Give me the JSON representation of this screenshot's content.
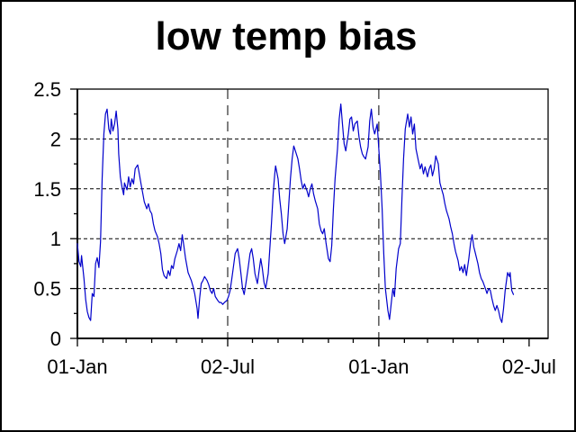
{
  "chart_data": {
    "type": "line",
    "title": "low temp bias",
    "legend": "none",
    "colors": {
      "line": "#0000cc",
      "axis": "#000000",
      "background": "#ffffff",
      "text": "#000000"
    },
    "grid": {
      "horizontal_style": "dashed",
      "vertical_style": "long-dashed"
    },
    "x_axis": {
      "kind": "date",
      "tick_labels": [
        "01-Jan",
        "02-Jul",
        "01-Jan",
        "02-Jul"
      ],
      "major_tick_days": [
        0,
        182,
        365,
        547
      ],
      "minor_tick_days": [
        31,
        59,
        90,
        120,
        151,
        212,
        243,
        273,
        304,
        334,
        396,
        424,
        455,
        485,
        516
      ],
      "range_days": [
        0,
        570
      ],
      "vertical_gridline_days": [
        182,
        365
      ]
    },
    "y_axis": {
      "range": [
        0,
        2.5
      ],
      "major_ticks": [
        0,
        0.5,
        1,
        1.5,
        2,
        2.5
      ],
      "tick_labels": [
        "0",
        "0.5",
        "1",
        "1.5",
        "2",
        "2.5"
      ],
      "minor_ticks": [
        0.25,
        0.75,
        1.25,
        1.75,
        2.25
      ],
      "gridlines": [
        0.5,
        1,
        1.5,
        2
      ]
    },
    "series": [
      {
        "name": "low temp bias",
        "points": [
          [
            0,
            0.95
          ],
          [
            2,
            0.77
          ],
          [
            4,
            0.72
          ],
          [
            5,
            0.83
          ],
          [
            8,
            0.6
          ],
          [
            10,
            0.39
          ],
          [
            12,
            0.27
          ],
          [
            14,
            0.21
          ],
          [
            16,
            0.18
          ],
          [
            18,
            0.45
          ],
          [
            20,
            0.42
          ],
          [
            22,
            0.75
          ],
          [
            24,
            0.81
          ],
          [
            26,
            0.71
          ],
          [
            28,
            0.97
          ],
          [
            30,
            1.6
          ],
          [
            32,
            2.05
          ],
          [
            34,
            2.25
          ],
          [
            36,
            2.3
          ],
          [
            38,
            2.1
          ],
          [
            40,
            2.05
          ],
          [
            41,
            2.2
          ],
          [
            43,
            2.08
          ],
          [
            45,
            2.15
          ],
          [
            47,
            2.28
          ],
          [
            49,
            2.1
          ],
          [
            50,
            1.85
          ],
          [
            52,
            1.62
          ],
          [
            54,
            1.52
          ],
          [
            56,
            1.44
          ],
          [
            57,
            1.56
          ],
          [
            60,
            1.49
          ],
          [
            62,
            1.62
          ],
          [
            64,
            1.52
          ],
          [
            66,
            1.6
          ],
          [
            68,
            1.55
          ],
          [
            70,
            1.7
          ],
          [
            73,
            1.74
          ],
          [
            75,
            1.65
          ],
          [
            77,
            1.55
          ],
          [
            79,
            1.46
          ],
          [
            81,
            1.37
          ],
          [
            84,
            1.3
          ],
          [
            86,
            1.35
          ],
          [
            88,
            1.28
          ],
          [
            90,
            1.25
          ],
          [
            92,
            1.15
          ],
          [
            94,
            1.08
          ],
          [
            97,
            1.02
          ],
          [
            99,
            0.95
          ],
          [
            101,
            0.85
          ],
          [
            103,
            0.69
          ],
          [
            105,
            0.63
          ],
          [
            108,
            0.6
          ],
          [
            110,
            0.68
          ],
          [
            112,
            0.63
          ],
          [
            114,
            0.73
          ],
          [
            116,
            0.7
          ],
          [
            118,
            0.8
          ],
          [
            121,
            0.88
          ],
          [
            123,
            0.95
          ],
          [
            125,
            0.88
          ],
          [
            127,
            1.04
          ],
          [
            129,
            0.92
          ],
          [
            131,
            0.8
          ],
          [
            134,
            0.66
          ],
          [
            136,
            0.62
          ],
          [
            138,
            0.58
          ],
          [
            140,
            0.52
          ],
          [
            142,
            0.45
          ],
          [
            145,
            0.3
          ],
          [
            146,
            0.2
          ],
          [
            148,
            0.4
          ],
          [
            150,
            0.55
          ],
          [
            152,
            0.58
          ],
          [
            154,
            0.62
          ],
          [
            157,
            0.58
          ],
          [
            159,
            0.54
          ],
          [
            161,
            0.48
          ],
          [
            163,
            0.45
          ],
          [
            165,
            0.5
          ],
          [
            167,
            0.42
          ],
          [
            170,
            0.38
          ],
          [
            172,
            0.36
          ],
          [
            174,
            0.36
          ],
          [
            176,
            0.34
          ],
          [
            178,
            0.36
          ],
          [
            181,
            0.38
          ],
          [
            183,
            0.42
          ],
          [
            185,
            0.48
          ],
          [
            187,
            0.6
          ],
          [
            189,
            0.72
          ],
          [
            191,
            0.85
          ],
          [
            194,
            0.9
          ],
          [
            196,
            0.8
          ],
          [
            198,
            0.65
          ],
          [
            200,
            0.5
          ],
          [
            202,
            0.44
          ],
          [
            204,
            0.55
          ],
          [
            207,
            0.72
          ],
          [
            209,
            0.85
          ],
          [
            211,
            0.9
          ],
          [
            213,
            0.8
          ],
          [
            215,
            0.65
          ],
          [
            218,
            0.55
          ],
          [
            220,
            0.68
          ],
          [
            222,
            0.8
          ],
          [
            224,
            0.7
          ],
          [
            226,
            0.56
          ],
          [
            228,
            0.5
          ],
          [
            231,
            0.65
          ],
          [
            233,
            0.9
          ],
          [
            235,
            1.15
          ],
          [
            237,
            1.45
          ],
          [
            239,
            1.65
          ],
          [
            240,
            1.73
          ],
          [
            243,
            1.6
          ],
          [
            245,
            1.4
          ],
          [
            247,
            1.25
          ],
          [
            249,
            1.05
          ],
          [
            251,
            0.95
          ],
          [
            254,
            1.1
          ],
          [
            256,
            1.35
          ],
          [
            258,
            1.6
          ],
          [
            260,
            1.8
          ],
          [
            262,
            1.93
          ],
          [
            264,
            1.88
          ],
          [
            267,
            1.8
          ],
          [
            269,
            1.7
          ],
          [
            271,
            1.58
          ],
          [
            273,
            1.5
          ],
          [
            275,
            1.55
          ],
          [
            278,
            1.48
          ],
          [
            280,
            1.42
          ],
          [
            282,
            1.5
          ],
          [
            284,
            1.55
          ],
          [
            286,
            1.45
          ],
          [
            288,
            1.38
          ],
          [
            291,
            1.3
          ],
          [
            293,
            1.15
          ],
          [
            295,
            1.08
          ],
          [
            297,
            1.05
          ],
          [
            299,
            1.1
          ],
          [
            301,
            0.96
          ],
          [
            304,
            0.8
          ],
          [
            306,
            0.77
          ],
          [
            308,
            0.93
          ],
          [
            310,
            1.29
          ],
          [
            312,
            1.6
          ],
          [
            315,
            1.9
          ],
          [
            317,
            2.2
          ],
          [
            319,
            2.35
          ],
          [
            321,
            2.15
          ],
          [
            323,
            1.95
          ],
          [
            325,
            1.88
          ],
          [
            328,
            2.05
          ],
          [
            330,
            2.2
          ],
          [
            332,
            2.22
          ],
          [
            334,
            2.08
          ],
          [
            336,
            2.15
          ],
          [
            339,
            2.18
          ],
          [
            341,
            2.02
          ],
          [
            343,
            1.92
          ],
          [
            345,
            1.85
          ],
          [
            347,
            1.82
          ],
          [
            349,
            1.8
          ],
          [
            352,
            1.92
          ],
          [
            354,
            2.18
          ],
          [
            356,
            2.3
          ],
          [
            358,
            2.12
          ],
          [
            360,
            2.05
          ],
          [
            363,
            2.15
          ],
          [
            365,
            1.9
          ],
          [
            367,
            1.65
          ],
          [
            369,
            1.3
          ],
          [
            371,
            0.85
          ],
          [
            373,
            0.5
          ],
          [
            376,
            0.28
          ],
          [
            378,
            0.19
          ],
          [
            380,
            0.35
          ],
          [
            382,
            0.5
          ],
          [
            384,
            0.42
          ],
          [
            386,
            0.7
          ],
          [
            389,
            0.9
          ],
          [
            391,
            0.95
          ],
          [
            393,
            1.4
          ],
          [
            395,
            1.8
          ],
          [
            397,
            2.1
          ],
          [
            400,
            2.25
          ],
          [
            402,
            2.12
          ],
          [
            404,
            2.22
          ],
          [
            406,
            2.05
          ],
          [
            408,
            2.15
          ],
          [
            410,
            1.9
          ],
          [
            413,
            1.78
          ],
          [
            415,
            1.7
          ],
          [
            417,
            1.75
          ],
          [
            419,
            1.65
          ],
          [
            421,
            1.72
          ],
          [
            424,
            1.62
          ],
          [
            426,
            1.7
          ],
          [
            428,
            1.74
          ],
          [
            430,
            1.63
          ],
          [
            432,
            1.7
          ],
          [
            434,
            1.83
          ],
          [
            437,
            1.75
          ],
          [
            439,
            1.56
          ],
          [
            441,
            1.5
          ],
          [
            443,
            1.44
          ],
          [
            445,
            1.35
          ],
          [
            447,
            1.28
          ],
          [
            450,
            1.2
          ],
          [
            452,
            1.12
          ],
          [
            454,
            1.05
          ],
          [
            456,
            0.95
          ],
          [
            458,
            0.87
          ],
          [
            461,
            0.78
          ],
          [
            463,
            0.68
          ],
          [
            465,
            0.72
          ],
          [
            467,
            0.66
          ],
          [
            469,
            0.74
          ],
          [
            471,
            0.63
          ],
          [
            474,
            0.8
          ],
          [
            476,
            0.95
          ],
          [
            478,
            1.04
          ],
          [
            480,
            0.92
          ],
          [
            482,
            0.85
          ],
          [
            485,
            0.75
          ],
          [
            487,
            0.66
          ],
          [
            489,
            0.6
          ],
          [
            491,
            0.57
          ],
          [
            494,
            0.5
          ],
          [
            496,
            0.45
          ],
          [
            498,
            0.5
          ],
          [
            500,
            0.48
          ],
          [
            502,
            0.4
          ],
          [
            504,
            0.33
          ],
          [
            506,
            0.28
          ],
          [
            508,
            0.33
          ],
          [
            510,
            0.28
          ],
          [
            512,
            0.2
          ],
          [
            514,
            0.16
          ],
          [
            516,
            0.3
          ],
          [
            518,
            0.48
          ],
          [
            520,
            0.6
          ],
          [
            521,
            0.66
          ],
          [
            523,
            0.62
          ],
          [
            524,
            0.66
          ],
          [
            526,
            0.48
          ],
          [
            528,
            0.44
          ]
        ]
      }
    ]
  }
}
